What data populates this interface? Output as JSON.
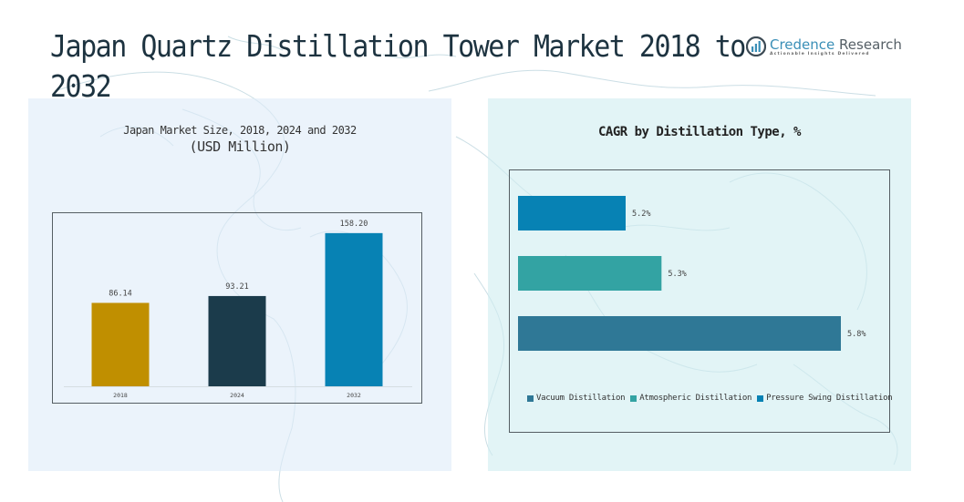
{
  "page": {
    "title": "Japan Quartz Distillation Tower Market 2018 to 2032"
  },
  "logo": {
    "name_part1": "Credence",
    "name_part2": " Research",
    "tagline": "Actionable Insights Delivered",
    "icon": "credence-logo-icon",
    "color": "#3a8fb7"
  },
  "chart_data": [
    {
      "type": "bar",
      "title": "Japan Market Size, 2018, 2024 and 2032",
      "subtitle": "(USD Million)",
      "categories": [
        "2018",
        "2024",
        "2032"
      ],
      "values": [
        86.14,
        93.21,
        158.2
      ],
      "value_labels": [
        "86.14",
        "93.21",
        "158.20"
      ],
      "colors": [
        "#C08F00",
        "#1B3B4B",
        "#0782B4"
      ],
      "xlabel": "",
      "ylabel": "",
      "ylim": [
        0,
        175
      ],
      "grid": false,
      "legend": "none"
    },
    {
      "type": "bar",
      "orientation": "horizontal",
      "title": "CAGR by Distillation Type, %",
      "categories": [
        "Pressure Swing Distillation",
        "Atmospheric Distillation",
        "Vacuum Distillation"
      ],
      "values": [
        5.2,
        5.3,
        5.8
      ],
      "value_labels": [
        "5.2%",
        "5.3%",
        "5.8%"
      ],
      "colors": [
        "#0782B4",
        "#33A3A3",
        "#2F7896"
      ],
      "xlim": [
        4.9,
        5.8
      ],
      "grid": false,
      "legend": "bottom",
      "legend_entries": [
        {
          "label": "Vacuum Distillation",
          "color": "#2F7896"
        },
        {
          "label": "Atmospheric Distillation",
          "color": "#33A3A3"
        },
        {
          "label": "Pressure Swing Distillation",
          "color": "#0782B4"
        }
      ]
    }
  ]
}
